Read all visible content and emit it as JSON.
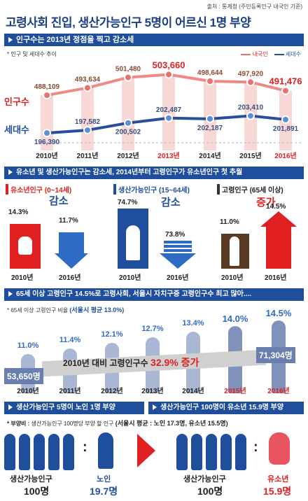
{
  "title": "고령사회 진입,  생산가능인구 5명이 어르신 1명 부양",
  "source": "출처 : 통계청 (주민등록인구 내국인 기준)",
  "section1": {
    "header": "인구수는 2013년 정점을 찍고 감소세",
    "note": "* 인구 및 세대수 추이",
    "legend_pop": "내국인",
    "legend_hh": "세대수",
    "label_pop": "인구수",
    "label_hh": "세대수"
  },
  "section2": {
    "header": "유소년 및 생산가능인구는 감소세, 2014년부터 고령인구가 유소년인구 첫 추월",
    "youth": {
      "label": "유소년인구 (0~14세)",
      "trend": "감소",
      "v1": "14.3%",
      "v2": "11.7%",
      "y1": "2010년",
      "y2": "2016년"
    },
    "working": {
      "label": "생산가능인구 (15~64세)",
      "trend": "감소",
      "v1": "74.7%",
      "v2": "73.8%",
      "y1": "2010년",
      "y2": "2016년"
    },
    "elderly": {
      "label": "고령인구 (65세 이상)",
      "trend": "증가",
      "v1": "11.0%",
      "v2": "14.5%",
      "y1": "2010년",
      "y2": "2016년"
    }
  },
  "section3": {
    "header": "65세 이상 고령인구 14.5%로 고령사회, 서울시 자치구중 고령인구수 최고 많아....",
    "note": "* 65세 이상 고령인구 비율",
    "note_bold": "(서울시 평균 13.0%)",
    "years": [
      "2010년",
      "2011년",
      "2012년",
      "2013년",
      "2014년",
      "2015년",
      "2016년"
    ],
    "ratios": [
      "11.0%",
      "11.4%",
      "12.1%",
      "12.7%",
      "13.4%",
      "14.0%",
      "14.5%"
    ],
    "start_count": "53,650명",
    "end_count": "71,304명",
    "banner_text": "2010년 대비 고령인구수",
    "banner_value": "32.9% 증가"
  },
  "section4": {
    "header_left": "생산가능인구 5명이 노인 1명 부양",
    "header_right": "생산가능인구 100명이 유소년 15.9명 부양",
    "note_bold": "* 부양비 :",
    "note": "생산가능인구 100명당 부양 할 인구",
    "note_seoul": "(서울시 평균 : 노인 17.3명, 유소년 15.5명)",
    "working_label": "생산가능인구",
    "working_value": "100명",
    "elderly_label": "노인",
    "elderly_value": "19.7명",
    "working_label2": "생산가능인구",
    "working_value2": "100명",
    "youth_label": "유소년",
    "youth_value": "15.9명"
  },
  "chart_data": {
    "type": "line",
    "x": [
      "2010년",
      "2011년",
      "2012년",
      "2013년",
      "2014년",
      "2015년",
      "2016년"
    ],
    "series": [
      {
        "name": "내국인",
        "values": [
          488109,
          493634,
          501480,
          503660,
          498644,
          497920,
          491476
        ]
      },
      {
        "name": "세대수",
        "values": [
          196390,
          197582,
          200502,
          202487,
          202187,
          203410,
          201891
        ]
      }
    ],
    "point_labels": {
      "pop": [
        "488,109",
        "493,634",
        "501,480",
        "503,660",
        "498,644",
        "497,920",
        "491,476"
      ],
      "hh": [
        "196,390",
        "197,582",
        "200,502",
        "202,487",
        "202,187",
        "203,410",
        "201,891"
      ]
    }
  },
  "colors": {
    "blue": "#1f4e9c",
    "red": "#e02020",
    "pink": "#f4a7a7",
    "lightblue": "#5b8fd6"
  }
}
